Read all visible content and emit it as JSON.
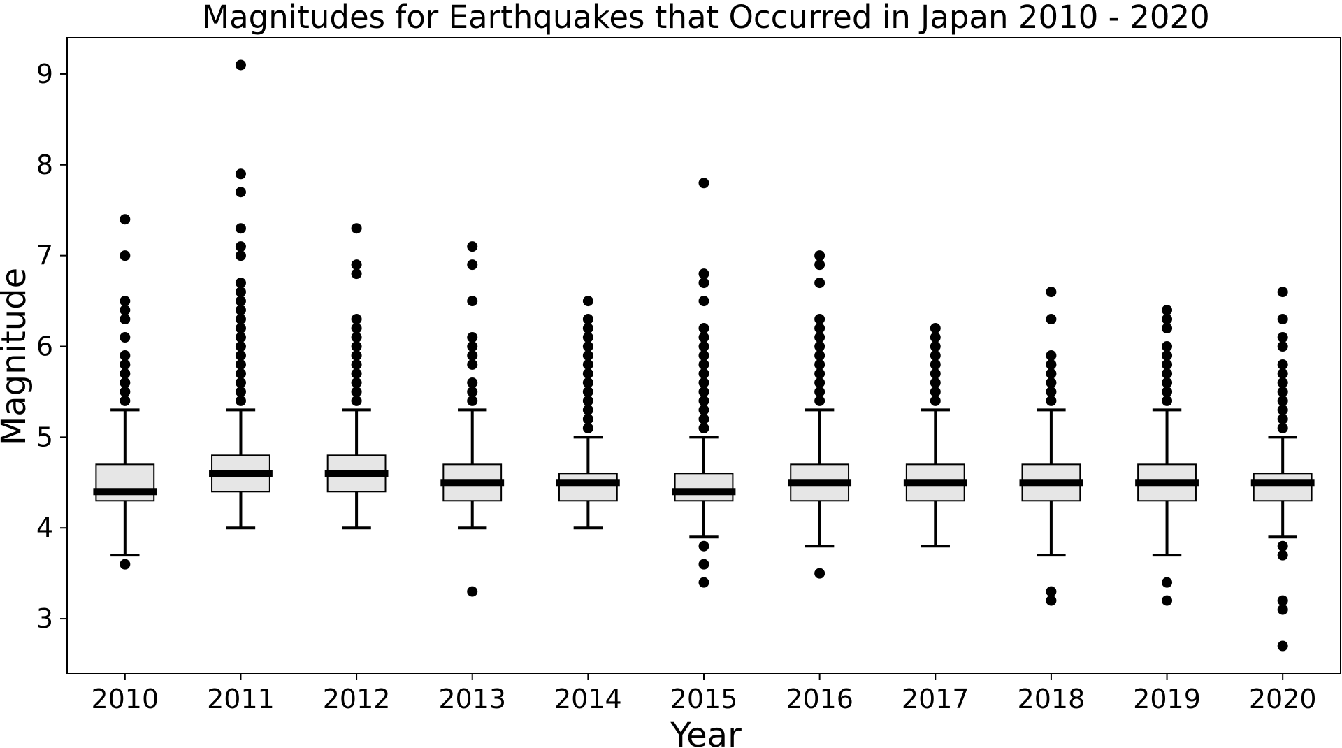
{
  "chart_data": {
    "type": "box",
    "title": "Magnitudes for Earthquakes that Occurred in Japan 2010 - 2020",
    "xlabel": "Year",
    "ylabel": "Magnitude",
    "ylim": [
      2.4,
      9.4
    ],
    "yticks": [
      3,
      4,
      5,
      6,
      7,
      8,
      9
    ],
    "grid": false,
    "colors": {
      "box_fill": "#e6e6e6",
      "stroke": "#000000",
      "outlier": "#000000"
    },
    "categories": [
      "2010",
      "2011",
      "2012",
      "2013",
      "2014",
      "2015",
      "2016",
      "2017",
      "2018",
      "2019",
      "2020"
    ],
    "boxes": [
      {
        "whisker_low": 3.7,
        "q1": 4.3,
        "median": 4.4,
        "q3": 4.7,
        "whisker_high": 5.3,
        "outliers": [
          3.6,
          5.4,
          5.5,
          5.6,
          5.7,
          5.8,
          5.9,
          6.1,
          6.3,
          6.4,
          6.5,
          7.0,
          7.4
        ]
      },
      {
        "whisker_low": 4.0,
        "q1": 4.4,
        "median": 4.6,
        "q3": 4.8,
        "whisker_high": 5.3,
        "outliers": [
          5.4,
          5.5,
          5.6,
          5.7,
          5.8,
          5.9,
          6.0,
          6.1,
          6.2,
          6.3,
          6.4,
          6.5,
          6.6,
          6.7,
          7.0,
          7.1,
          7.3,
          7.7,
          7.9,
          9.1
        ]
      },
      {
        "whisker_low": 4.0,
        "q1": 4.4,
        "median": 4.6,
        "q3": 4.8,
        "whisker_high": 5.3,
        "outliers": [
          5.4,
          5.5,
          5.6,
          5.7,
          5.8,
          5.9,
          6.0,
          6.1,
          6.2,
          6.3,
          6.8,
          6.9,
          7.3
        ]
      },
      {
        "whisker_low": 4.0,
        "q1": 4.3,
        "median": 4.5,
        "q3": 4.7,
        "whisker_high": 5.3,
        "outliers": [
          3.3,
          5.4,
          5.5,
          5.6,
          5.8,
          5.9,
          6.0,
          6.1,
          6.5,
          6.9,
          7.1
        ]
      },
      {
        "whisker_low": 4.0,
        "q1": 4.3,
        "median": 4.5,
        "q3": 4.6,
        "whisker_high": 5.0,
        "outliers": [
          5.1,
          5.2,
          5.3,
          5.4,
          5.5,
          5.6,
          5.7,
          5.8,
          5.9,
          6.0,
          6.1,
          6.2,
          6.3,
          6.5
        ]
      },
      {
        "whisker_low": 3.9,
        "q1": 4.3,
        "median": 4.4,
        "q3": 4.6,
        "whisker_high": 5.0,
        "outliers": [
          3.4,
          3.6,
          3.8,
          5.1,
          5.2,
          5.3,
          5.4,
          5.5,
          5.6,
          5.7,
          5.8,
          5.9,
          6.0,
          6.1,
          6.2,
          6.5,
          6.7,
          6.8,
          7.8
        ]
      },
      {
        "whisker_low": 3.8,
        "q1": 4.3,
        "median": 4.5,
        "q3": 4.7,
        "whisker_high": 5.3,
        "outliers": [
          3.5,
          5.4,
          5.5,
          5.6,
          5.7,
          5.8,
          5.9,
          6.0,
          6.1,
          6.2,
          6.3,
          6.7,
          6.9,
          7.0
        ]
      },
      {
        "whisker_low": 3.8,
        "q1": 4.3,
        "median": 4.5,
        "q3": 4.7,
        "whisker_high": 5.3,
        "outliers": [
          5.4,
          5.5,
          5.6,
          5.7,
          5.8,
          5.9,
          6.0,
          6.1,
          6.2
        ]
      },
      {
        "whisker_low": 3.7,
        "q1": 4.3,
        "median": 4.5,
        "q3": 4.7,
        "whisker_high": 5.3,
        "outliers": [
          3.2,
          3.3,
          5.4,
          5.5,
          5.6,
          5.7,
          5.8,
          5.9,
          6.3,
          6.6
        ]
      },
      {
        "whisker_low": 3.7,
        "q1": 4.3,
        "median": 4.5,
        "q3": 4.7,
        "whisker_high": 5.3,
        "outliers": [
          3.2,
          3.4,
          5.4,
          5.5,
          5.6,
          5.7,
          5.8,
          5.9,
          6.0,
          6.2,
          6.3,
          6.4
        ]
      },
      {
        "whisker_low": 3.9,
        "q1": 4.3,
        "median": 4.5,
        "q3": 4.6,
        "whisker_high": 5.0,
        "outliers": [
          2.7,
          3.1,
          3.2,
          3.7,
          3.8,
          5.1,
          5.2,
          5.3,
          5.4,
          5.5,
          5.6,
          5.7,
          5.8,
          6.0,
          6.1,
          6.3,
          6.6
        ]
      }
    ]
  }
}
